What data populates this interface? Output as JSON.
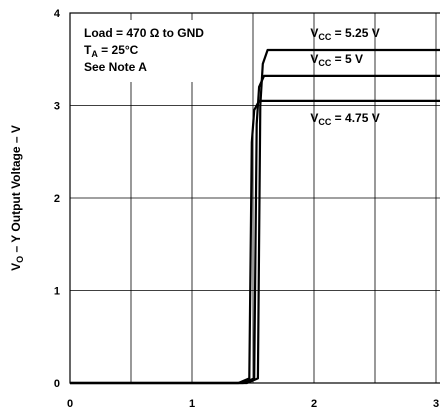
{
  "chart_data": {
    "type": "line",
    "title": "",
    "xlabel": "",
    "ylabel_main": "V",
    "ylabel_sub": "O",
    "ylabel_rest": " – Y Output Voltage – V",
    "xlim": [
      0,
      3
    ],
    "ylim": [
      0,
      4
    ],
    "x_ticks": [
      "0",
      "1",
      "2",
      "3"
    ],
    "y_ticks": [
      "0",
      "1",
      "2",
      "3",
      "4"
    ],
    "grid": true,
    "conditions": [
      {
        "main": "Load = 470 Ω to GND",
        "sub": ""
      },
      {
        "main": "T",
        "sub": "A",
        "rest": " = 25°C"
      },
      {
        "main": "See Note A",
        "sub": ""
      }
    ],
    "series": [
      {
        "name_main": "V",
        "name_sub": "CC",
        "name_rest": " = 5.25 V",
        "x": [
          0,
          1.45,
          1.54,
          1.56,
          1.58,
          1.62,
          3.1
        ],
        "y": [
          0,
          0,
          0.05,
          3.0,
          3.45,
          3.6,
          3.6
        ]
      },
      {
        "name_main": "V",
        "name_sub": "CC",
        "name_rest": " = 5 V",
        "x": [
          0,
          1.42,
          1.51,
          1.53,
          1.55,
          1.59,
          3.1
        ],
        "y": [
          0,
          0,
          0.05,
          2.8,
          3.2,
          3.32,
          3.32
        ]
      },
      {
        "name_main": "V",
        "name_sub": "CC",
        "name_rest": " = 4.75 V",
        "x": [
          0,
          1.38,
          1.47,
          1.49,
          1.51,
          1.55,
          3.1
        ],
        "y": [
          0,
          0,
          0.05,
          2.6,
          2.95,
          3.05,
          3.05
        ]
      }
    ],
    "series_label_positions": [
      {
        "x": 1.97,
        "y": 3.74
      },
      {
        "x": 1.97,
        "y": 3.46
      },
      {
        "x": 1.97,
        "y": 2.82
      }
    ]
  }
}
